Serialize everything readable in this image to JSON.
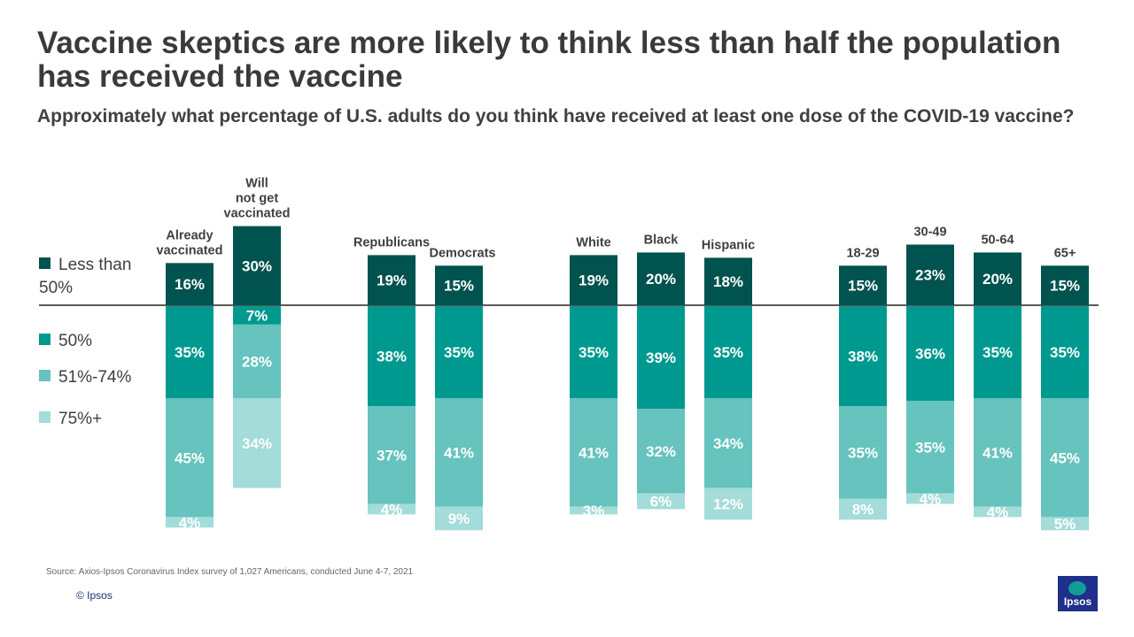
{
  "title": "Vaccine skeptics are more likely to think less than half the population has received the vaccine",
  "subtitle": "Approximately what percentage of U.S. adults do you think have received at least one dose of the COVID-19 vaccine?",
  "legend": [
    {
      "label": "Less than 50%",
      "color": "#00534e"
    },
    {
      "label": "50%",
      "color": "#009990"
    },
    {
      "label": "51%-74%",
      "color": "#66c3bd"
    },
    {
      "label": "75%+",
      "color": "#a3dcd8"
    }
  ],
  "chart_data": {
    "type": "bar",
    "stacking": "diverging",
    "title": "Vaccine skeptics are more likely to think less than half the population has received the vaccine",
    "categories": [
      "Already vaccinated",
      "Will not get vaccinated",
      "Republicans",
      "Democrats",
      "White",
      "Black",
      "Hispanic",
      "18-29",
      "30-49",
      "50-64",
      "65+"
    ],
    "category_labels": [
      [
        "Already",
        "vaccinated"
      ],
      [
        "Will",
        "not get",
        "vaccinated"
      ],
      [
        "Republicans"
      ],
      [
        "Democrats"
      ],
      [
        "White"
      ],
      [
        "Black"
      ],
      [
        "Hispanic"
      ],
      [
        "18-29"
      ],
      [
        "30-49"
      ],
      [
        "50-64"
      ],
      [
        "65+"
      ]
    ],
    "series": [
      {
        "name": "Less than 50%",
        "direction": "up",
        "values": [
          16,
          30,
          19,
          15,
          19,
          20,
          18,
          15,
          23,
          20,
          15
        ]
      },
      {
        "name": "50%",
        "direction": "down",
        "values": [
          35,
          7,
          38,
          35,
          35,
          39,
          35,
          38,
          36,
          35,
          35
        ]
      },
      {
        "name": "51%-74%",
        "direction": "down",
        "values": [
          45,
          28,
          37,
          41,
          41,
          32,
          34,
          35,
          35,
          41,
          45
        ]
      },
      {
        "name": "75%+",
        "direction": "down",
        "values": [
          4,
          34,
          4,
          9,
          3,
          6,
          12,
          8,
          4,
          4,
          5
        ]
      }
    ],
    "value_suffix": "%",
    "xlabel": "",
    "ylabel": ""
  },
  "source": "Source: Axios-Ipsos Coronavirus Index survey of 1,027 Americans, conducted June 4-7, 2021",
  "copyright": "© Ipsos",
  "logo_text": "Ipsos"
}
